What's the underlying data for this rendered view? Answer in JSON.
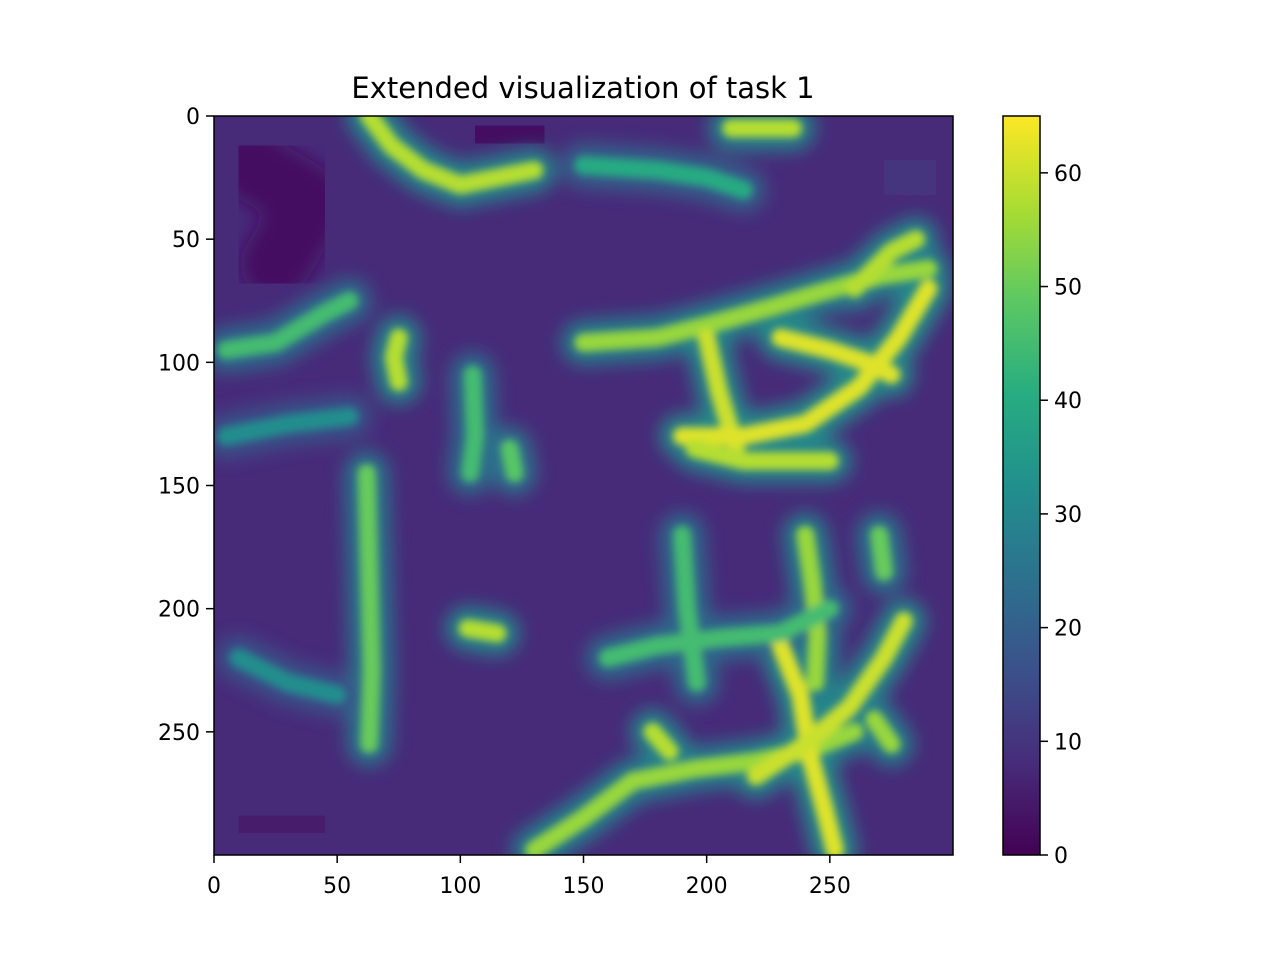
{
  "chart_data": {
    "type": "heatmap",
    "title": "Extended visualization of task 1",
    "xlabel": "",
    "ylabel": "",
    "xlim": [
      0,
      300
    ],
    "ylim": [
      300,
      0
    ],
    "x_ticks": [
      0,
      50,
      100,
      150,
      200,
      250
    ],
    "y_ticks": [
      0,
      50,
      100,
      150,
      200,
      250
    ],
    "colorbar": {
      "range": [
        0,
        65
      ],
      "ticks": [
        0,
        10,
        20,
        30,
        40,
        50,
        60
      ],
      "colormap": "viridis"
    },
    "background_level": 8,
    "high_value_strokes": [
      {
        "points": [
          [
            63,
            0
          ],
          [
            72,
            12
          ],
          [
            85,
            22
          ],
          [
            100,
            28
          ],
          [
            115,
            25
          ],
          [
            130,
            22
          ]
        ],
        "value": 58
      },
      {
        "points": [
          [
            150,
            20
          ],
          [
            180,
            22
          ],
          [
            200,
            25
          ],
          [
            215,
            30
          ]
        ],
        "value": 40
      },
      {
        "points": [
          [
            210,
            5
          ],
          [
            235,
            5
          ]
        ],
        "value": 58
      },
      {
        "points": [
          [
            5,
            95
          ],
          [
            25,
            92
          ],
          [
            45,
            80
          ],
          [
            55,
            75
          ]
        ],
        "value": 45
      },
      {
        "points": [
          [
            150,
            92
          ],
          [
            180,
            90
          ],
          [
            200,
            85
          ],
          [
            225,
            78
          ],
          [
            245,
            72
          ],
          [
            270,
            65
          ],
          [
            290,
            62
          ]
        ],
        "value": 55
      },
      {
        "points": [
          [
            200,
            90
          ],
          [
            205,
            112
          ],
          [
            212,
            135
          ]
        ],
        "value": 60
      },
      {
        "points": [
          [
            190,
            130
          ],
          [
            215,
            130
          ],
          [
            240,
            125
          ],
          [
            262,
            110
          ],
          [
            278,
            90
          ],
          [
            290,
            70
          ]
        ],
        "value": 62
      },
      {
        "points": [
          [
            230,
            90
          ],
          [
            250,
            95
          ],
          [
            265,
            100
          ],
          [
            275,
            105
          ]
        ],
        "value": 62
      },
      {
        "points": [
          [
            195,
            135
          ],
          [
            215,
            140
          ],
          [
            240,
            140
          ],
          [
            250,
            140
          ]
        ],
        "value": 58
      },
      {
        "points": [
          [
            260,
            70
          ],
          [
            275,
            55
          ],
          [
            285,
            50
          ]
        ],
        "value": 58
      },
      {
        "points": [
          [
            75,
            90
          ],
          [
            73,
            98
          ],
          [
            75,
            108
          ]
        ],
        "value": 58
      },
      {
        "points": [
          [
            62,
            145
          ],
          [
            63,
            185
          ],
          [
            64,
            225
          ],
          [
            63,
            255
          ]
        ],
        "value": 50
      },
      {
        "points": [
          [
            105,
            105
          ],
          [
            106,
            130
          ],
          [
            104,
            145
          ]
        ],
        "value": 45
      },
      {
        "points": [
          [
            120,
            135
          ],
          [
            122,
            145
          ]
        ],
        "value": 48
      },
      {
        "points": [
          [
            103,
            208
          ],
          [
            115,
            210
          ]
        ],
        "value": 58
      },
      {
        "points": [
          [
            130,
            298
          ],
          [
            150,
            285
          ],
          [
            170,
            270
          ],
          [
            195,
            265
          ],
          [
            220,
            262
          ],
          [
            240,
            258
          ],
          [
            260,
            250
          ]
        ],
        "value": 55
      },
      {
        "points": [
          [
            230,
            215
          ],
          [
            238,
            235
          ],
          [
            242,
            260
          ],
          [
            248,
            282
          ],
          [
            252,
            298
          ]
        ],
        "value": 62
      },
      {
        "points": [
          [
            220,
            268
          ],
          [
            240,
            255
          ],
          [
            258,
            240
          ],
          [
            272,
            220
          ],
          [
            280,
            205
          ]
        ],
        "value": 60
      },
      {
        "points": [
          [
            240,
            170
          ],
          [
            243,
            190
          ],
          [
            245,
            210
          ],
          [
            244,
            230
          ]
        ],
        "value": 55
      },
      {
        "points": [
          [
            178,
            250
          ],
          [
            185,
            258
          ]
        ],
        "value": 58
      },
      {
        "points": [
          [
            160,
            220
          ],
          [
            180,
            215
          ],
          [
            205,
            212
          ],
          [
            230,
            210
          ],
          [
            250,
            200
          ]
        ],
        "value": 45
      },
      {
        "points": [
          [
            190,
            170
          ],
          [
            192,
            200
          ],
          [
            196,
            230
          ]
        ],
        "value": 45
      },
      {
        "points": [
          [
            270,
            170
          ],
          [
            272,
            185
          ]
        ],
        "value": 50
      },
      {
        "points": [
          [
            268,
            245
          ],
          [
            275,
            255
          ]
        ],
        "value": 55
      },
      {
        "points": [
          [
            5,
            130
          ],
          [
            30,
            125
          ],
          [
            55,
            122
          ]
        ],
        "value": 32
      },
      {
        "points": [
          [
            10,
            220
          ],
          [
            30,
            230
          ],
          [
            50,
            235
          ]
        ],
        "value": 32
      }
    ],
    "dark_regions": [
      {
        "points": [
          [
            15,
            20
          ],
          [
            40,
            35
          ],
          [
            25,
            60
          ]
        ],
        "value": 3
      },
      {
        "points": [
          [
            15,
            285
          ],
          [
            40,
            290
          ]
        ],
        "value": 5
      },
      {
        "points": [
          [
            110,
            5
          ],
          [
            130,
            10
          ]
        ],
        "value": 3
      },
      {
        "points": [
          [
            275,
            20
          ],
          [
            290,
            30
          ]
        ],
        "value": 10
      }
    ]
  }
}
